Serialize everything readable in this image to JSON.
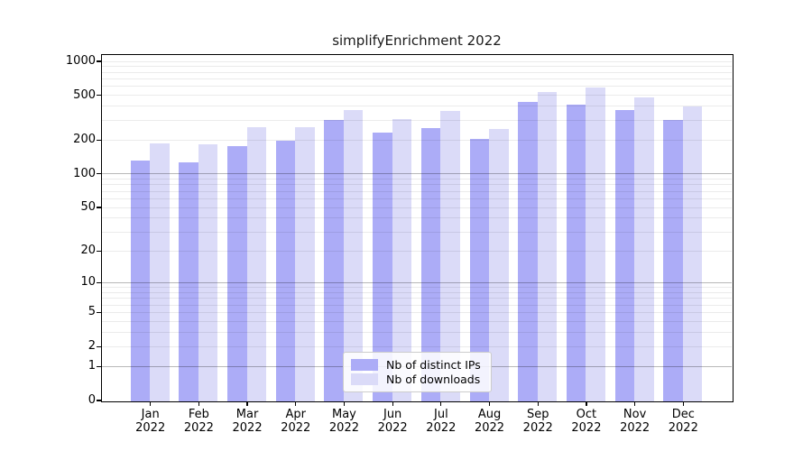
{
  "chart_data": {
    "type": "bar",
    "title": "simplifyEnrichment 2022",
    "y_scale": "log1p",
    "ylim": [
      0,
      1000
    ],
    "y_ticks": [
      1000,
      500,
      200,
      100,
      50,
      20,
      10,
      5,
      2,
      1,
      0
    ],
    "y_gridlines_major": [
      1,
      10,
      100
    ],
    "y_gridlines_minor": [
      2,
      3,
      4,
      5,
      6,
      7,
      8,
      9,
      20,
      30,
      40,
      50,
      60,
      70,
      80,
      90,
      200,
      300,
      400,
      500,
      600,
      700,
      800,
      900,
      1000
    ],
    "categories": [
      "Jan 2022",
      "Feb 2022",
      "Mar 2022",
      "Apr 2022",
      "May 2022",
      "Jun 2022",
      "Jul 2022",
      "Aug 2022",
      "Sep 2022",
      "Oct 2022",
      "Nov 2022",
      "Dec 2022"
    ],
    "series": [
      {
        "name": "Nb of distinct IPs",
        "color": "#acacf7",
        "values": [
          132,
          128,
          180,
          200,
          306,
          236,
          260,
          208,
          440,
          417,
          373,
          305
        ]
      },
      {
        "name": "Nb of downloads",
        "color": "#dbdbf8",
        "values": [
          190,
          186,
          265,
          262,
          375,
          312,
          365,
          252,
          540,
          590,
          486,
          400
        ]
      }
    ],
    "legend_position": "lower center",
    "grid": true
  },
  "colors": {
    "background": "#ffffff",
    "axis": "#000000",
    "grid_minor": "#ececec",
    "grid_major": "#b8b8b8",
    "bar_distinct_ips": "#acacf7",
    "bar_downloads": "#dbdbf8"
  }
}
